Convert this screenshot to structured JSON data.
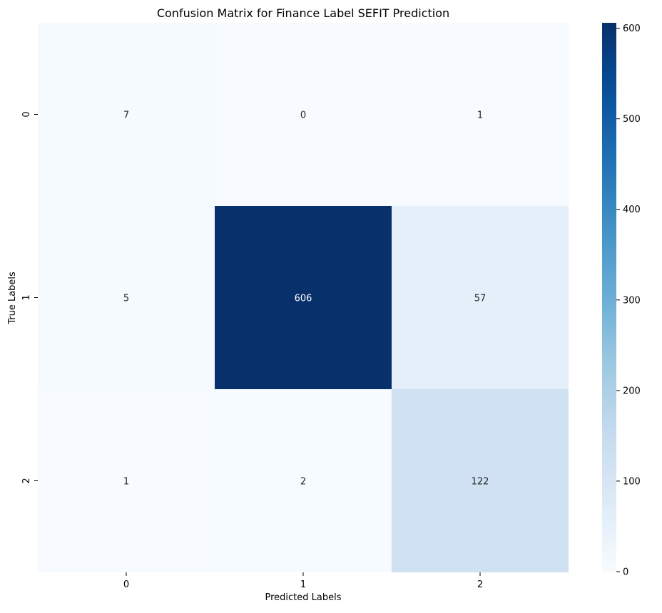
{
  "chart_data": {
    "type": "heatmap",
    "title": "Confusion Matrix for Finance Label SEFIT Prediction",
    "xlabel": "Predicted Labels",
    "ylabel": "True Labels",
    "x_categories": [
      "0",
      "1",
      "2"
    ],
    "y_categories": [
      "0",
      "1",
      "2"
    ],
    "values": [
      [
        7,
        0,
        1
      ],
      [
        5,
        606,
        57
      ],
      [
        1,
        2,
        122
      ]
    ],
    "colormap": "Blues",
    "colorbar": {
      "min": 0,
      "max": 606,
      "ticks": [
        0,
        100,
        200,
        300,
        400,
        500,
        600
      ],
      "tick_labels": [
        "0",
        "100",
        "200",
        "300",
        "400",
        "500",
        "600"
      ]
    },
    "colors": {
      "low": "#f7fbff",
      "high": "#08306b",
      "text_on_light": "#262626",
      "text_on_dark": "#ffffff"
    }
  }
}
